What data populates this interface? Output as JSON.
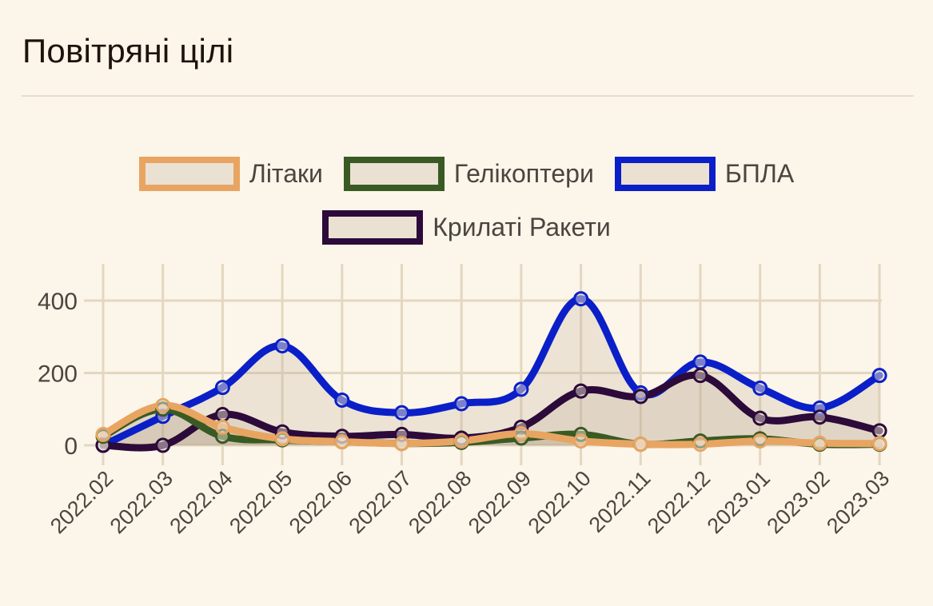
{
  "header": {
    "title": "Повітряні цілі"
  },
  "legend": {
    "items": [
      {
        "label": "Літаки",
        "color": "#E8A562"
      },
      {
        "label": "Гелікоптери",
        "color": "#3A5A24"
      },
      {
        "label": "БПЛА",
        "color": "#0A1FC8"
      },
      {
        "label": "Крилаті Ракети",
        "color": "#2C0A3A"
      }
    ]
  },
  "chart_data": {
    "type": "line",
    "title": "Повітряні цілі",
    "xlabel": "",
    "ylabel": "",
    "ylim": [
      0,
      480
    ],
    "yticks": [
      0,
      200,
      400
    ],
    "grid": true,
    "legend_position": "top",
    "categories": [
      "2022.02",
      "2022.03",
      "2022.04",
      "2022.05",
      "2022.06",
      "2022.07",
      "2022.08",
      "2022.09",
      "2022.10",
      "2022.11",
      "2022.12",
      "2023.01",
      "2023.02",
      "2023.03"
    ],
    "series": [
      {
        "name": "Літаки",
        "color": "#E8A562",
        "values": [
          30,
          110,
          50,
          18,
          10,
          5,
          12,
          32,
          12,
          3,
          3,
          12,
          6,
          5
        ]
      },
      {
        "name": "Гелікоптери",
        "color": "#3A5A24",
        "values": [
          25,
          100,
          25,
          15,
          10,
          5,
          8,
          20,
          30,
          3,
          12,
          18,
          3,
          3
        ]
      },
      {
        "name": "БПЛА",
        "color": "#0A1FC8",
        "values": [
          0,
          80,
          160,
          275,
          125,
          90,
          115,
          155,
          405,
          145,
          230,
          158,
          103,
          193
        ]
      },
      {
        "name": "Крилаті Ракети",
        "color": "#2C0A3A",
        "values": [
          0,
          0,
          85,
          37,
          25,
          30,
          20,
          50,
          150,
          135,
          193,
          75,
          78,
          40
        ]
      }
    ]
  }
}
